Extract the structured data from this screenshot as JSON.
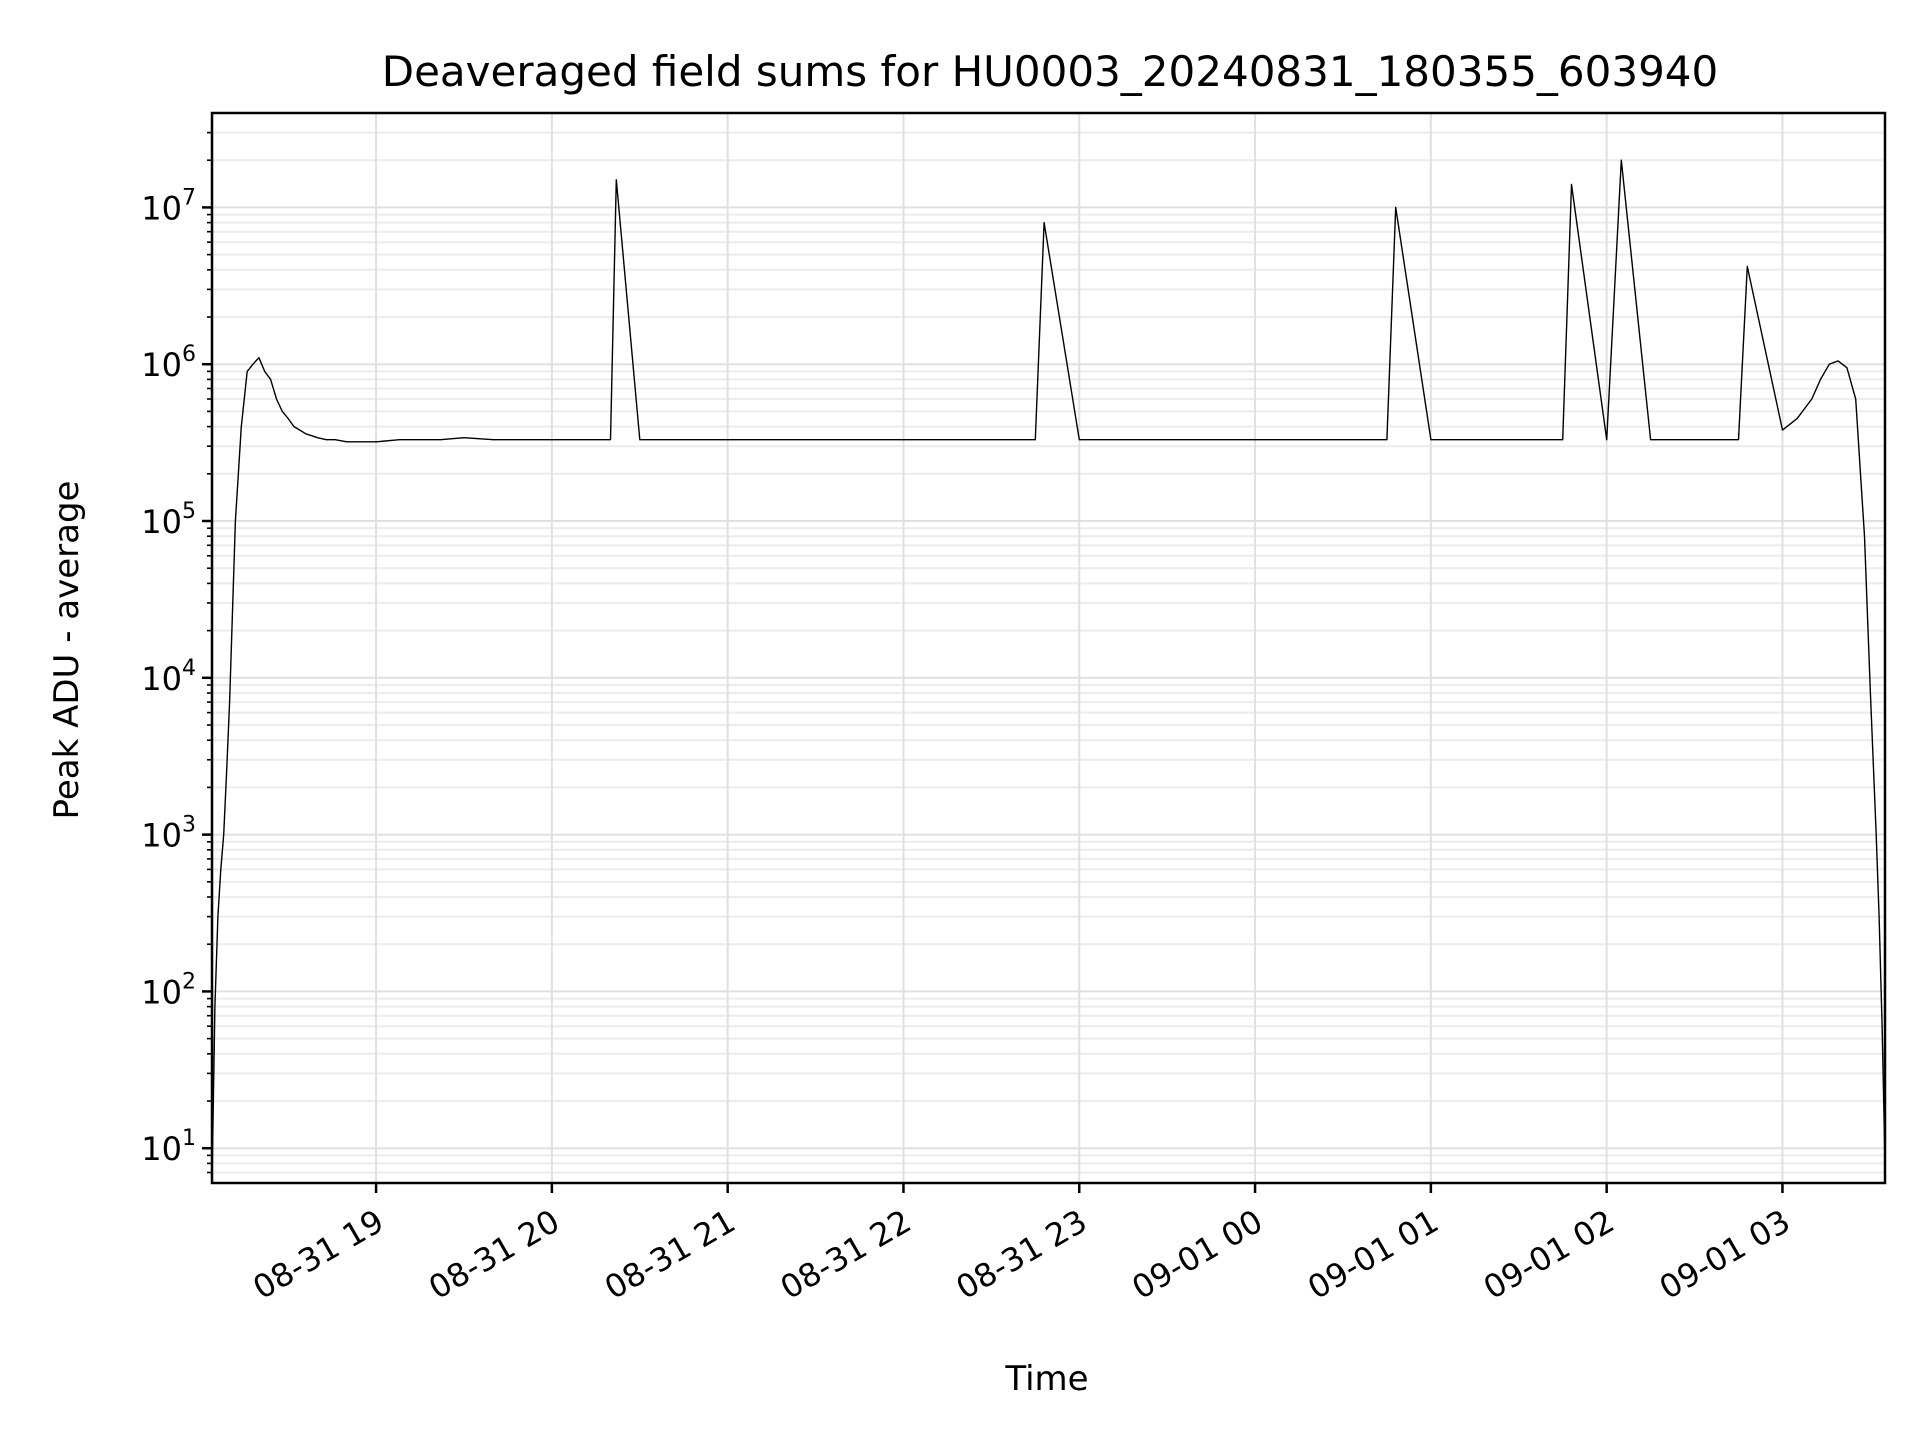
{
  "chart_data": {
    "type": "line",
    "title": "Deaveraged field sums for HU0003_20240831_180355_603940",
    "xlabel": "Time",
    "ylabel": "Peak ADU - average",
    "yscale": "log",
    "ylim": [
      6,
      40000000
    ],
    "xlim": [
      "2024-08-31 18:04",
      "2024-09-01 03:35"
    ],
    "grid": true,
    "legend": "none",
    "colors": {
      "line": "#000000",
      "grid": "#e0e0e0",
      "background": "#ffffff"
    },
    "x_ticks": [
      {
        "value": "2024-08-31 19:00",
        "label": "08-31 19"
      },
      {
        "value": "2024-08-31 20:00",
        "label": "08-31 20"
      },
      {
        "value": "2024-08-31 21:00",
        "label": "08-31 21"
      },
      {
        "value": "2024-08-31 22:00",
        "label": "08-31 22"
      },
      {
        "value": "2024-08-31 23:00",
        "label": "08-31 23"
      },
      {
        "value": "2024-09-01 00:00",
        "label": "09-01 00"
      },
      {
        "value": "2024-09-01 01:00",
        "label": "09-01 01"
      },
      {
        "value": "2024-09-01 02:00",
        "label": "09-01 02"
      },
      {
        "value": "2024-09-01 03:00",
        "label": "09-01 03"
      }
    ],
    "y_ticks": [
      {
        "value": 10,
        "base": "10",
        "exp": "1"
      },
      {
        "value": 100,
        "base": "10",
        "exp": "2"
      },
      {
        "value": 1000,
        "base": "10",
        "exp": "3"
      },
      {
        "value": 10000,
        "base": "10",
        "exp": "4"
      },
      {
        "value": 100000,
        "base": "10",
        "exp": "5"
      },
      {
        "value": 1000000,
        "base": "10",
        "exp": "6"
      },
      {
        "value": 10000000,
        "base": "10",
        "exp": "7"
      }
    ],
    "series": [
      {
        "x": [
          "2024-08-31 18:04",
          "2024-08-31 18:05",
          "2024-08-31 18:06",
          "2024-08-31 18:07",
          "2024-08-31 18:08",
          "2024-08-31 18:09",
          "2024-08-31 18:10",
          "2024-08-31 18:12",
          "2024-08-31 18:14",
          "2024-08-31 18:16",
          "2024-08-31 18:18",
          "2024-08-31 18:20",
          "2024-08-31 18:22",
          "2024-08-31 18:24",
          "2024-08-31 18:26",
          "2024-08-31 18:28",
          "2024-08-31 18:30",
          "2024-08-31 18:32",
          "2024-08-31 18:34",
          "2024-08-31 18:36",
          "2024-08-31 18:38",
          "2024-08-31 18:40",
          "2024-08-31 18:43",
          "2024-08-31 18:46",
          "2024-08-31 18:50",
          "2024-08-31 18:55",
          "2024-08-31 19:00",
          "2024-08-31 19:08",
          "2024-08-31 19:15",
          "2024-08-31 19:22",
          "2024-08-31 19:30",
          "2024-08-31 19:40",
          "2024-08-31 19:50",
          "2024-08-31 20:00",
          "2024-08-31 20:10",
          "2024-08-31 20:20",
          "2024-08-31 20:22",
          "2024-08-31 20:30",
          "2024-08-31 20:40",
          "2024-08-31 20:50",
          "2024-08-31 21:00",
          "2024-08-31 21:15",
          "2024-08-31 21:30",
          "2024-08-31 21:45",
          "2024-08-31 22:00",
          "2024-08-31 22:15",
          "2024-08-31 22:30",
          "2024-08-31 22:45",
          "2024-08-31 22:48",
          "2024-08-31 23:00",
          "2024-08-31 23:15",
          "2024-08-31 23:30",
          "2024-08-31 23:45",
          "2024-09-01 00:00",
          "2024-09-01 00:15",
          "2024-09-01 00:30",
          "2024-09-01 00:45",
          "2024-09-01 00:48",
          "2024-09-01 01:00",
          "2024-09-01 01:15",
          "2024-09-01 01:30",
          "2024-09-01 01:45",
          "2024-09-01 01:48",
          "2024-09-01 02:00",
          "2024-09-01 02:05",
          "2024-09-01 02:15",
          "2024-09-01 02:30",
          "2024-09-01 02:45",
          "2024-09-01 02:48",
          "2024-09-01 03:00",
          "2024-09-01 03:05",
          "2024-09-01 03:10",
          "2024-09-01 03:13",
          "2024-09-01 03:16",
          "2024-09-01 03:19",
          "2024-09-01 03:22",
          "2024-09-01 03:25",
          "2024-09-01 03:28",
          "2024-09-01 03:30",
          "2024-09-01 03:32",
          "2024-09-01 03:33",
          "2024-09-01 03:34",
          "2024-09-01 03:35"
        ],
        "y": [
          6,
          80,
          300,
          600,
          1000,
          2500,
          7000,
          100000,
          400000,
          900000,
          1000000,
          1100000,
          900000,
          800000,
          600000,
          500000,
          450000,
          400000,
          380000,
          360000,
          350000,
          340000,
          330000,
          330000,
          320000,
          320000,
          320000,
          330000,
          330000,
          330000,
          340000,
          330000,
          330000,
          330000,
          330000,
          330000,
          15000000,
          330000,
          330000,
          330000,
          330000,
          330000,
          330000,
          330000,
          330000,
          330000,
          330000,
          330000,
          8000000,
          330000,
          330000,
          330000,
          330000,
          330000,
          330000,
          330000,
          330000,
          10000000,
          330000,
          330000,
          330000,
          330000,
          14000000,
          330000,
          20000000,
          330000,
          330000,
          330000,
          4200000,
          380000,
          450000,
          600000,
          800000,
          1000000,
          1050000,
          950000,
          600000,
          80000,
          8000,
          1000,
          300,
          60,
          8
        ]
      }
    ]
  }
}
